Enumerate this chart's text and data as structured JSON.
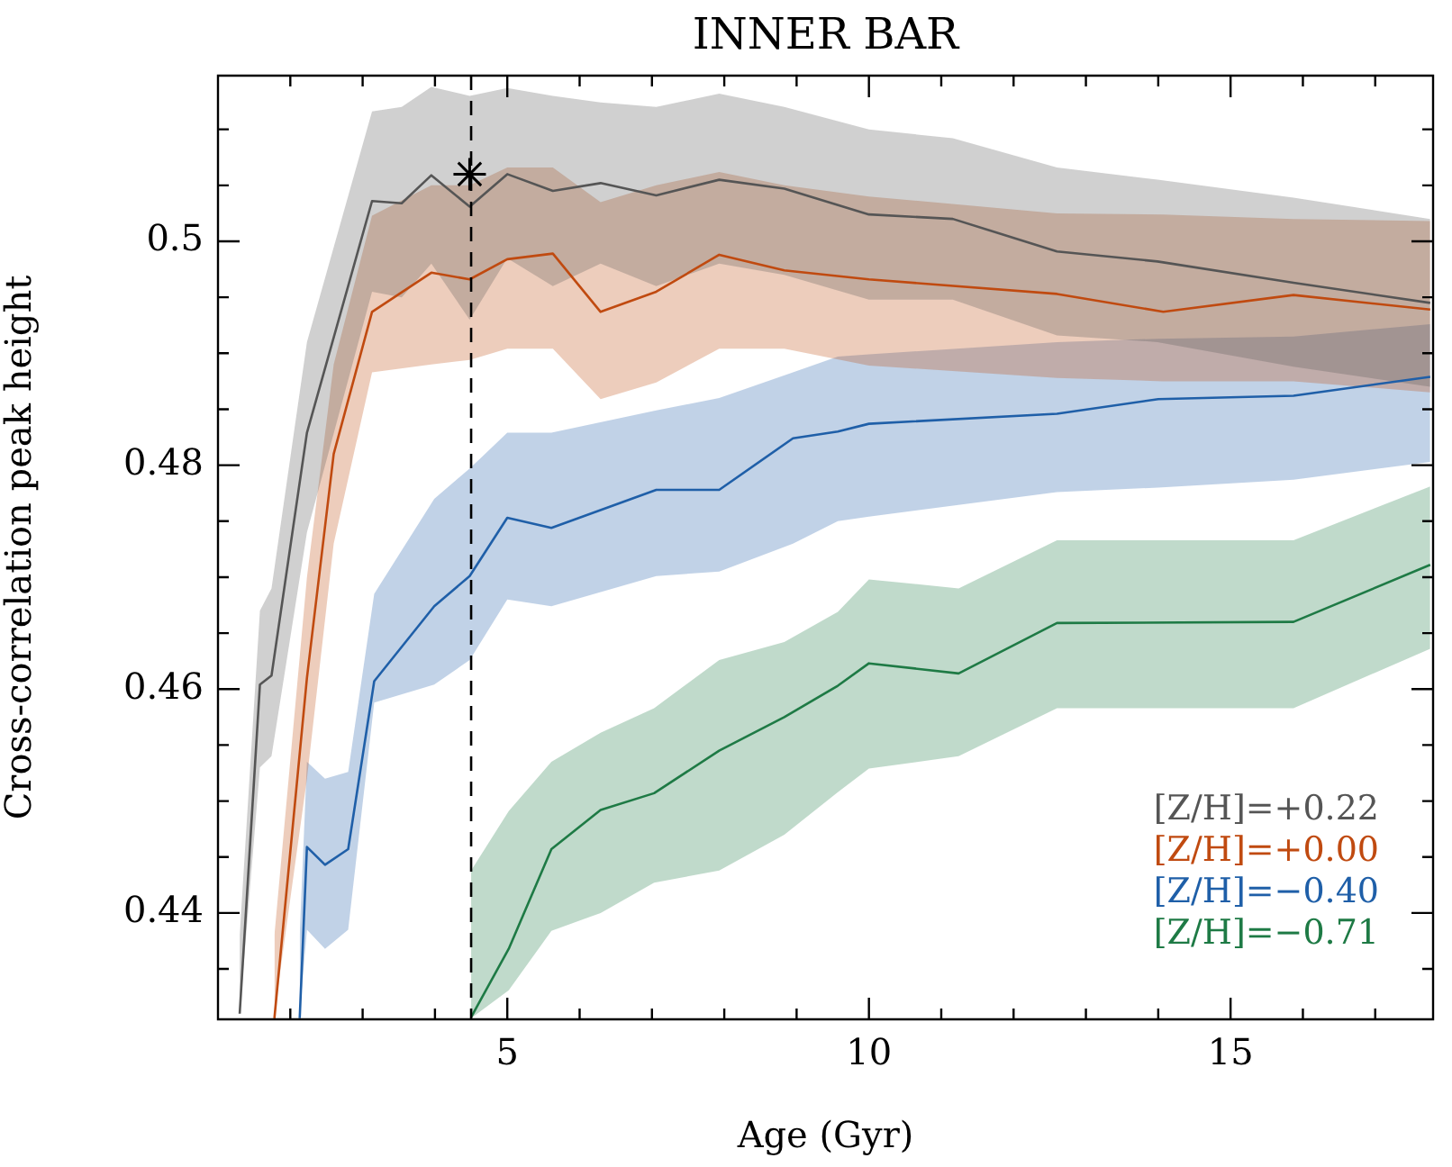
{
  "chart_data": {
    "type": "line",
    "title": "INNER BAR",
    "xlabel": "Age (Gyr)",
    "ylabel": "Cross-correlation peak height",
    "xlim": [
      1,
      17.8
    ],
    "ylim": [
      0.4305,
      0.5148
    ],
    "xticks": [
      {
        "value": 2,
        "label": null
      },
      {
        "value": 3,
        "label": null
      },
      {
        "value": 4,
        "label": null
      },
      5,
      {
        "value": 6,
        "label": null
      },
      {
        "value": 7,
        "label": null
      },
      {
        "value": 8,
        "label": null
      },
      {
        "value": 9,
        "label": null
      },
      10,
      {
        "value": 11,
        "label": null
      },
      {
        "value": 12,
        "label": null
      },
      {
        "value": 13,
        "label": null
      },
      {
        "value": 14,
        "label": null
      },
      15,
      {
        "value": 16,
        "label": null
      },
      {
        "value": 17,
        "label": null
      }
    ],
    "yticks": [
      {
        "value": 0.435,
        "label": null
      },
      0.44,
      {
        "value": 0.445,
        "label": null
      },
      {
        "value": 0.45,
        "label": null
      },
      {
        "value": 0.455,
        "label": null
      },
      0.46,
      {
        "value": 0.465,
        "label": null
      },
      {
        "value": 0.47,
        "label": null
      },
      {
        "value": 0.475,
        "label": null
      },
      0.48,
      {
        "value": 0.485,
        "label": null
      },
      {
        "value": 0.49,
        "label": null
      },
      {
        "value": 0.495,
        "label": null
      },
      0.5,
      {
        "value": 0.505,
        "label": null
      },
      {
        "value": 0.51,
        "label": null
      }
    ],
    "grid": false,
    "legend": "bottom right",
    "marker": "none",
    "line_style": "solid",
    "ref_lines": [
      {
        "axis": "x",
        "value": 4.5,
        "line_style": "dashed",
        "color": "#000000"
      }
    ],
    "series": [
      {
        "name": "[Z/H]=+0.22",
        "color": "#555555",
        "x": [
          1.3,
          1.58,
          1.74,
          2.23,
          3.13,
          3.54,
          3.95,
          4.48,
          5.0,
          5.63,
          6.29,
          7.06,
          7.93,
          8.83,
          10.0,
          11.16,
          12.6,
          13.99,
          15.87,
          17.76
        ],
        "values": [
          0.431,
          0.4604,
          0.4612,
          0.4829,
          0.5036,
          0.5034,
          0.5059,
          0.5031,
          0.506,
          0.5045,
          0.5052,
          0.5041,
          0.5055,
          0.5047,
          0.5024,
          0.502,
          0.4991,
          0.4982,
          0.4963,
          0.4945
        ],
        "upper": [
          0.438,
          0.467,
          0.469,
          0.491,
          0.5116,
          0.512,
          0.5138,
          0.513,
          0.5137,
          0.513,
          0.5124,
          0.512,
          0.5132,
          0.512,
          0.51,
          0.5092,
          0.5066,
          0.5055,
          0.5039,
          0.502
        ],
        "lower": [
          0.431,
          0.453,
          0.454,
          0.474,
          0.4955,
          0.495,
          0.498,
          0.493,
          0.4985,
          0.496,
          0.498,
          0.496,
          0.498,
          0.497,
          0.4948,
          0.4948,
          0.4916,
          0.491,
          0.4888,
          0.487
        ]
      },
      {
        "name": "[Z/H]=+0.00",
        "color": "#c04a10",
        "x": [
          1.78,
          2.23,
          2.6,
          3.13,
          3.95,
          4.48,
          5.0,
          5.63,
          6.29,
          7.06,
          7.93,
          8.83,
          10.0,
          12.6,
          14.07,
          15.87,
          17.76
        ],
        "values": [
          0.4306,
          0.461,
          0.481,
          0.4937,
          0.4972,
          0.4966,
          0.4984,
          0.4989,
          0.4937,
          0.4955,
          0.4988,
          0.4974,
          0.4966,
          0.4953,
          0.4937,
          0.4952,
          0.4939
        ],
        "upper": [
          0.438,
          0.47,
          0.489,
          0.5023,
          0.505,
          0.505,
          0.5066,
          0.5066,
          0.5035,
          0.505,
          0.5062,
          0.505,
          0.504,
          0.5025,
          0.5024,
          0.502,
          0.5018
        ],
        "lower": [
          0.431,
          0.452,
          0.473,
          0.4883,
          0.489,
          0.4894,
          0.4904,
          0.4904,
          0.4859,
          0.4874,
          0.4904,
          0.4904,
          0.4889,
          0.4878,
          0.4875,
          0.4875,
          0.4865
        ]
      },
      {
        "name": "[Z/H]=−0.40",
        "color": "#1f5fa8",
        "x": [
          2.13,
          2.23,
          2.48,
          2.8,
          3.16,
          3.99,
          4.48,
          5.0,
          5.61,
          7.06,
          7.93,
          8.95,
          9.57,
          10.0,
          12.6,
          14.0,
          15.87,
          17.76
        ],
        "values": [
          0.4306,
          0.4459,
          0.4443,
          0.4457,
          0.4607,
          0.4674,
          0.4701,
          0.4753,
          0.4744,
          0.4778,
          0.4778,
          0.4824,
          0.483,
          0.4837,
          0.4846,
          0.4859,
          0.4862,
          0.4879
        ],
        "upper": [
          0.438,
          0.4535,
          0.452,
          0.4526,
          0.4685,
          0.477,
          0.4797,
          0.4829,
          0.4829,
          0.4849,
          0.486,
          0.4883,
          0.4897,
          0.4899,
          0.491,
          0.4913,
          0.4915,
          0.4926
        ],
        "lower": [
          0.431,
          0.4385,
          0.4368,
          0.4385,
          0.4588,
          0.4604,
          0.4626,
          0.468,
          0.4674,
          0.4701,
          0.4705,
          0.473,
          0.475,
          0.4754,
          0.4776,
          0.478,
          0.4787,
          0.4803
        ]
      },
      {
        "name": "[Z/H]=−0.71",
        "color": "#1e7a45",
        "x": [
          4.5,
          5.02,
          5.61,
          6.29,
          7.03,
          7.93,
          8.83,
          9.57,
          10.0,
          11.24,
          12.6,
          15.87,
          17.76
        ],
        "values": [
          0.4307,
          0.4368,
          0.4457,
          0.4492,
          0.4507,
          0.4545,
          0.4575,
          0.4603,
          0.4623,
          0.4614,
          0.4659,
          0.466,
          0.4711
        ],
        "upper": [
          0.4438,
          0.4491,
          0.4535,
          0.4561,
          0.4583,
          0.4626,
          0.4642,
          0.4669,
          0.4698,
          0.469,
          0.4733,
          0.4733,
          0.4781
        ],
        "lower": [
          0.4306,
          0.4331,
          0.4384,
          0.44,
          0.4427,
          0.4438,
          0.447,
          0.4508,
          0.4529,
          0.454,
          0.4583,
          0.4583,
          0.4636
        ]
      },
      {
        "type": "scatter",
        "color": "#000000",
        "marker": "cross",
        "x": [
          4.48
        ],
        "values": [
          0.506
        ]
      }
    ]
  }
}
